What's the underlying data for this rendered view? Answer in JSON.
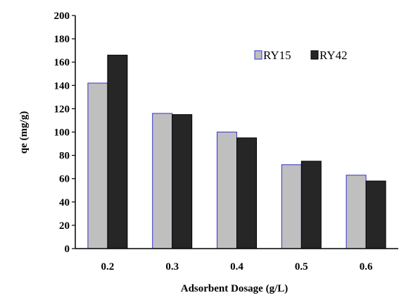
{
  "chart_data": {
    "type": "bar",
    "title": "",
    "xlabel": "Adsorbent Dosage (g/L)",
    "ylabel": "qe (mg/g)",
    "categories": [
      "0.2",
      "0.3",
      "0.4",
      "0.5",
      "0.6"
    ],
    "series": [
      {
        "name": "RY15",
        "values": [
          142,
          116,
          100,
          72,
          63
        ],
        "color": "#bfbfbf",
        "stroke": "#3333cc"
      },
      {
        "name": "RY42",
        "values": [
          166,
          115,
          95,
          75,
          58
        ],
        "color": "#262626",
        "stroke": "#000000"
      }
    ],
    "ylim": [
      0,
      200
    ],
    "yticks": [
      0,
      20,
      40,
      60,
      80,
      100,
      120,
      140,
      160,
      180,
      200
    ],
    "grid": false,
    "legend": "top-right"
  }
}
